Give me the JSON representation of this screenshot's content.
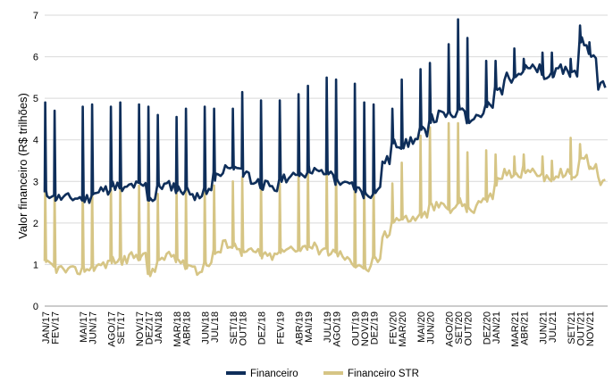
{
  "chart_data": {
    "type": "line",
    "ylabel": "Valor financeiro (R$ trilhões)",
    "xlabel": "",
    "ylim": [
      0,
      7
    ],
    "yticks": [
      0,
      1,
      2,
      3,
      4,
      5,
      6,
      7
    ],
    "grid": "horizontal",
    "legend_position": "bottom-center",
    "x_tick_labels": [
      "JAN/17",
      "FEV/17",
      "MAI/17",
      "JUN/17",
      "AGO/17",
      "SET/17",
      "NOV/17",
      "DEZ/17",
      "JAN/18",
      "MAR/18",
      "ABR/18",
      "JUN/18",
      "JUL/18",
      "SET/18",
      "OUT/18",
      "DEZ/18",
      "FEV/19",
      "ABR/19",
      "MAI/19",
      "JUL/19",
      "AGO/19",
      "OUT/19",
      "NOV/19",
      "DEZ/19",
      "FEV/20",
      "MAR/20",
      "MAI/20",
      "JUN/20",
      "AGO/20",
      "SET/20",
      "OUT/20",
      "DEZ/20",
      "JAN/21",
      "MAR/21",
      "ABR/21",
      "JUN/21",
      "JUL/21",
      "SET/21",
      "OUT/21",
      "NOV/21"
    ],
    "x_tick_months": [
      0,
      1,
      4,
      5,
      7,
      8,
      10,
      11,
      12,
      14,
      15,
      17,
      18,
      20,
      21,
      23,
      25,
      27,
      28,
      30,
      31,
      33,
      34,
      35,
      37,
      38,
      40,
      41,
      43,
      44,
      45,
      47,
      48,
      50,
      51,
      53,
      54,
      56,
      57,
      58
    ],
    "x_month_count": 60,
    "series": [
      {
        "name": "Financeiro",
        "color": "#0e2e5a",
        "monthly_base": [
          2.7,
          2.6,
          2.6,
          2.6,
          2.6,
          2.7,
          2.8,
          2.9,
          2.8,
          2.9,
          2.9,
          2.6,
          2.9,
          2.9,
          2.8,
          2.8,
          2.6,
          2.8,
          3.1,
          3.3,
          3.3,
          3.2,
          3.0,
          2.9,
          2.8,
          3.1,
          3.1,
          3.2,
          3.3,
          3.2,
          3.2,
          3.0,
          2.9,
          2.8,
          2.7,
          2.8,
          3.5,
          3.9,
          3.9,
          4.0,
          4.2,
          4.5,
          4.6,
          4.6,
          4.8,
          4.5,
          4.6,
          4.8,
          5.2,
          5.5,
          5.6,
          5.7,
          5.7,
          5.5,
          5.6,
          5.7,
          5.6,
          6.4,
          6.0,
          5.3
        ],
        "monthly_spike": [
          4.9,
          4.7,
          4.8,
          4.85,
          4.8,
          4.9,
          4.85,
          4.8,
          4.6,
          4.55,
          4.75,
          4.8,
          4.75,
          4.75,
          5.15,
          4.95,
          4.95,
          5.1,
          5.3,
          5.5,
          5.45,
          5.35,
          4.9,
          4.85,
          4.75,
          5.45,
          5.7,
          5.85,
          6.3,
          6.9,
          6.45,
          5.9,
          5.9,
          6.2,
          5.95,
          6.1,
          6.1,
          5.95,
          6.75,
          6.35
        ]
      },
      {
        "name": "Financeiro STR",
        "color": "#d6c585",
        "monthly_base": [
          1.0,
          0.9,
          0.85,
          0.85,
          0.9,
          0.95,
          1.0,
          1.1,
          1.1,
          1.2,
          1.2,
          0.8,
          1.1,
          1.2,
          1.1,
          1.0,
          0.85,
          1.05,
          1.3,
          1.5,
          1.45,
          1.3,
          1.3,
          1.2,
          1.2,
          1.3,
          1.4,
          1.4,
          1.45,
          1.35,
          1.3,
          1.25,
          1.1,
          1.0,
          0.9,
          1.1,
          1.7,
          2.1,
          2.1,
          2.1,
          2.2,
          2.4,
          2.4,
          2.3,
          2.5,
          2.3,
          2.5,
          2.6,
          3.0,
          3.2,
          3.2,
          3.3,
          3.2,
          3.1,
          3.1,
          3.2,
          3.1,
          3.6,
          3.4,
          3.0
        ],
        "monthly_spike": [
          2.9,
          2.8,
          2.85,
          2.9,
          2.95,
          2.85,
          2.9,
          2.8,
          2.7,
          2.75,
          2.85,
          2.9,
          2.9,
          3.0,
          3.1,
          3.1,
          2.95,
          3.3,
          3.4,
          3.45,
          3.45,
          3.35,
          3.05,
          3.0,
          2.95,
          3.45,
          4.1,
          4.3,
          4.4,
          4.4,
          3.7,
          3.75,
          3.65,
          3.6,
          3.65,
          3.6,
          3.5,
          4.05,
          3.9,
          3.3
        ]
      }
    ]
  },
  "legend": {
    "items": [
      {
        "label": "Financeiro",
        "color": "#0e2e5a"
      },
      {
        "label": "Financeiro STR",
        "color": "#d6c585"
      }
    ]
  }
}
